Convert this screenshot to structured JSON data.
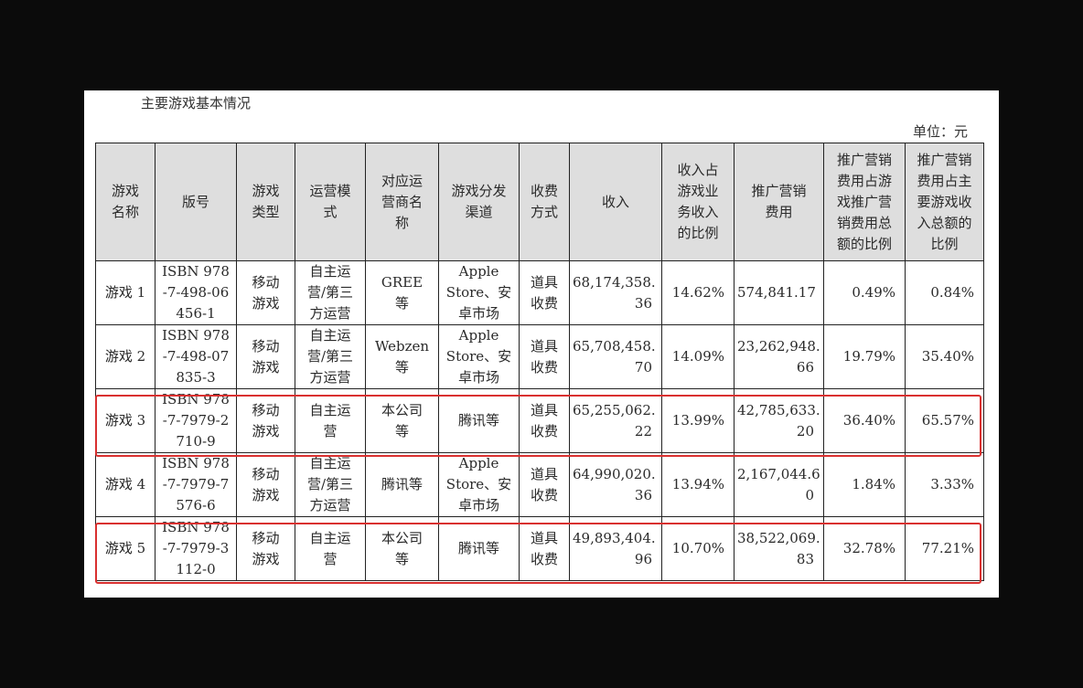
{
  "title": "主要游戏基本情况",
  "unit": "单位：元",
  "highlight_color": "#d9302f",
  "highlighted_rows": [
    "游戏 3",
    "游戏 5"
  ],
  "headers": [
    "游戏\n名称",
    "版号",
    "游戏\n类型",
    "运营模\n式",
    "对应运\n营商名\n称",
    "游戏分发\n渠道",
    "收费\n方式",
    "收入",
    "收入占\n游戏业\n务收入\n的比例",
    "推广营销\n费用",
    "推广营销\n费用占游\n戏推广营\n销费用总\n额的比例",
    "推广营销\n费用占主\n要游戏收\n入总额的\n比例"
  ],
  "rows": [
    [
      "游戏 1",
      "ISBN 978\n-7-498-06\n456-1",
      "移动\n游戏",
      "自主运\n营/第三\n方运营",
      "GREE\n等",
      "Apple\nStore、安\n卓市场",
      "道具\n收费",
      "68,174,358.\n36",
      "14.62%",
      "574,841.17",
      "0.49%",
      "0.84%"
    ],
    [
      "游戏 2",
      "ISBN 978\n-7-498-07\n835-3",
      "移动\n游戏",
      "自主运\n营/第三\n方运营",
      "Webzen\n等",
      "Apple\nStore、安\n卓市场",
      "道具\n收费",
      "65,708,458.\n70",
      "14.09%",
      "23,262,948.\n66",
      "19.79%",
      "35.40%"
    ],
    [
      "游戏 3",
      "ISBN 978\n-7-7979-2\n710-9",
      "移动\n游戏",
      "自主运\n营",
      "本公司\n等",
      "腾讯等",
      "道具\n收费",
      "65,255,062.\n22",
      "13.99%",
      "42,785,633.\n20",
      "36.40%",
      "65.57%"
    ],
    [
      "游戏 4",
      "ISBN 978\n-7-7979-7\n576-6",
      "移动\n游戏",
      "自主运\n营/第三\n方运营",
      "腾讯等",
      "Apple\nStore、安\n卓市场",
      "道具\n收费",
      "64,990,020.\n36",
      "13.94%",
      "2,167,044.6\n0",
      "1.84%",
      "3.33%"
    ],
    [
      "游戏 5",
      "ISBN 978\n-7-7979-3\n112-0",
      "移动\n游戏",
      "自主运\n营",
      "本公司\n等",
      "腾讯等",
      "道具\n收费",
      "49,893,404.\n96",
      "10.70%",
      "38,522,069.\n83",
      "32.78%",
      "77.21%"
    ]
  ]
}
